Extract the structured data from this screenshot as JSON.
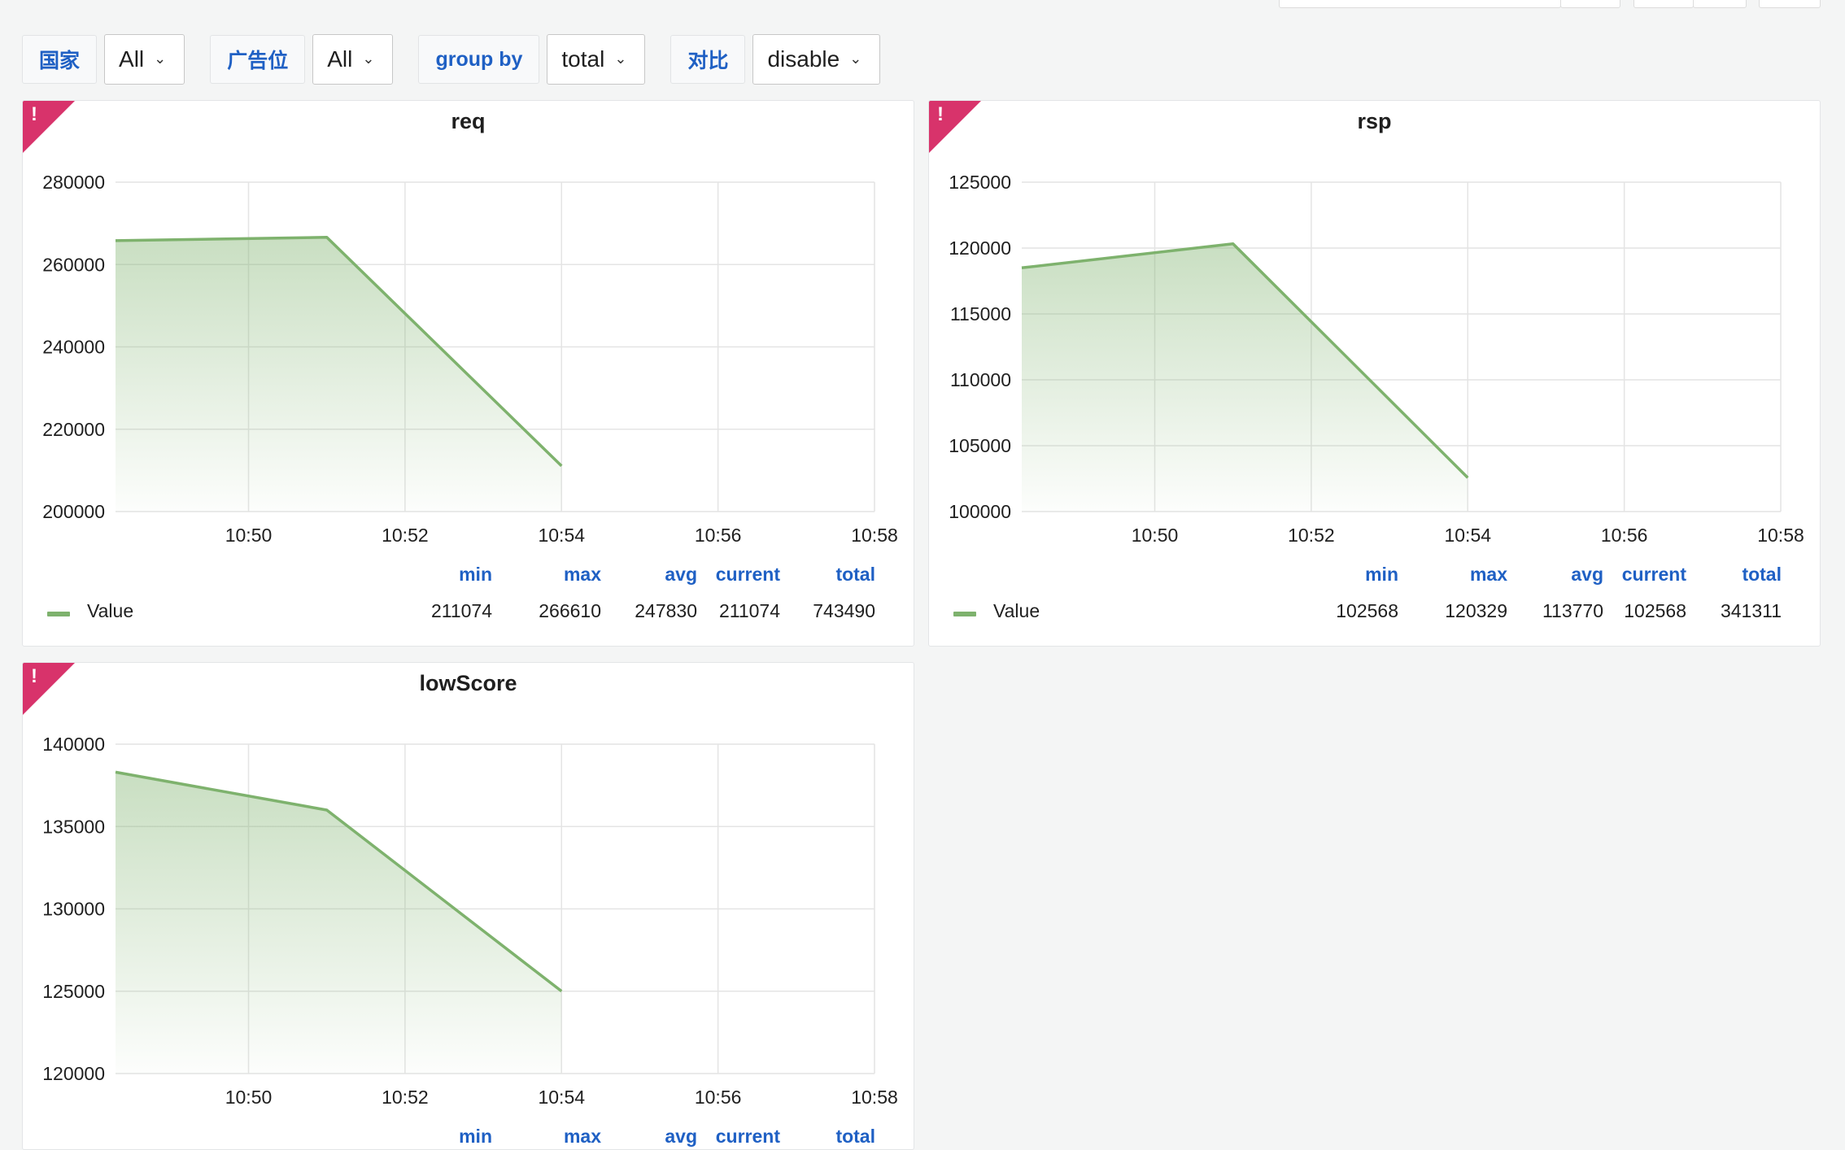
{
  "variables": [
    {
      "label": "国家",
      "value": "All"
    },
    {
      "label": "广告位",
      "value": "All"
    },
    {
      "label": "group by",
      "value": "total"
    },
    {
      "label": "对比",
      "value": "disable"
    }
  ],
  "colors": {
    "series": "#7eb26d",
    "alert": "#d8336b",
    "accent": "#1f60c4",
    "grid": "#e4e4e4"
  },
  "legend_headers": [
    "min",
    "max",
    "avg",
    "current",
    "total"
  ],
  "chart_data": [
    {
      "type": "area",
      "title": "req",
      "x_ticks": [
        "10:50",
        "10:52",
        "10:54",
        "10:56",
        "10:58"
      ],
      "x_range": [
        "10:48.3",
        "10:58"
      ],
      "y_ticks": [
        "280000",
        "260000",
        "240000",
        "220000",
        "200000"
      ],
      "ylim": [
        200000,
        280000
      ],
      "grid": true,
      "series": [
        {
          "name": "Value",
          "points": [
            {
              "x": "10:48.3",
              "y": 265800
            },
            {
              "x": "10:51",
              "y": 266610
            },
            {
              "x": "10:54",
              "y": 211074
            }
          ]
        }
      ],
      "legend": {
        "name": "Value",
        "values": [
          "211074",
          "266610",
          "247830",
          "211074",
          "743490"
        ]
      }
    },
    {
      "type": "area",
      "title": "rsp",
      "x_ticks": [
        "10:50",
        "10:52",
        "10:54",
        "10:56",
        "10:58"
      ],
      "x_range": [
        "10:48.3",
        "10:58"
      ],
      "y_ticks": [
        "125000",
        "120000",
        "115000",
        "110000",
        "105000",
        "100000"
      ],
      "ylim": [
        100000,
        125000
      ],
      "grid": true,
      "series": [
        {
          "name": "Value",
          "points": [
            {
              "x": "10:48.3",
              "y": 118500
            },
            {
              "x": "10:51",
              "y": 120329
            },
            {
              "x": "10:54",
              "y": 102568
            }
          ]
        }
      ],
      "legend": {
        "name": "Value",
        "values": [
          "102568",
          "120329",
          "113770",
          "102568",
          "341311"
        ]
      }
    },
    {
      "type": "area",
      "title": "lowScore",
      "x_ticks": [
        "10:50",
        "10:52",
        "10:54",
        "10:56",
        "10:58"
      ],
      "x_range": [
        "10:48.3",
        "10:58"
      ],
      "y_ticks": [
        "140000",
        "135000",
        "130000",
        "125000",
        "120000"
      ],
      "ylim": [
        120000,
        140000
      ],
      "grid": true,
      "series": [
        {
          "name": "Value",
          "points": [
            {
              "x": "10:48.3",
              "y": 138300
            },
            {
              "x": "10:51",
              "y": 136000
            },
            {
              "x": "10:54",
              "y": 125000
            }
          ]
        }
      ]
    }
  ]
}
